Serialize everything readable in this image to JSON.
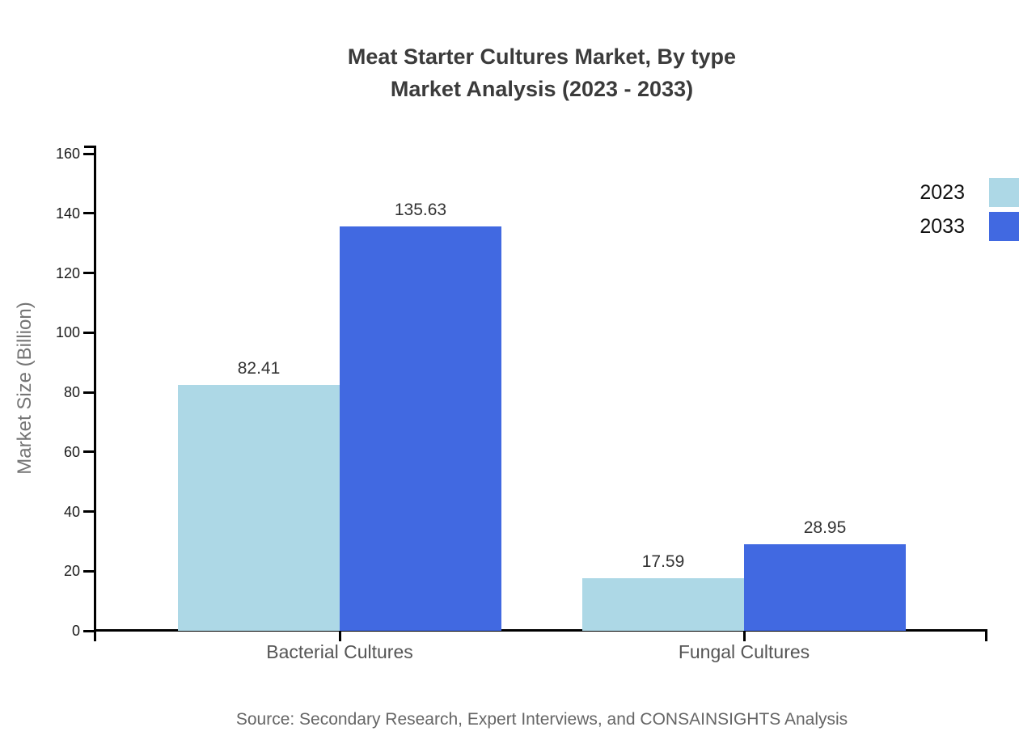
{
  "chart": {
    "title_line1": "Meat Starter Cultures Market, By type",
    "title_line2": "Market Analysis (2023 - 2033)",
    "ylabel": "Market Size (Billion)",
    "source": "Source: Secondary Research, Expert Interviews, and CONSAINSIGHTS Analysis"
  },
  "chart_data": {
    "type": "bar",
    "title": "Meat Starter Cultures Market, By type — Market Analysis (2023 - 2033)",
    "categories": [
      "Bacterial Cultures",
      "Fungal Cultures"
    ],
    "series": [
      {
        "name": "2023",
        "color": "#ADD8E6",
        "values": [
          82.41,
          17.59
        ]
      },
      {
        "name": "2033",
        "color": "#4169E1",
        "values": [
          135.63,
          28.95
        ]
      }
    ],
    "xlabel": "",
    "ylabel": "Market Size (Billion)",
    "ylim": [
      0,
      160
    ],
    "ytick_step": 20,
    "grid": false,
    "value_labels": true,
    "value_label_decimals": 2,
    "legend_position": "right-edge",
    "axis_color": "#000000",
    "background_color": "#ffffff"
  }
}
